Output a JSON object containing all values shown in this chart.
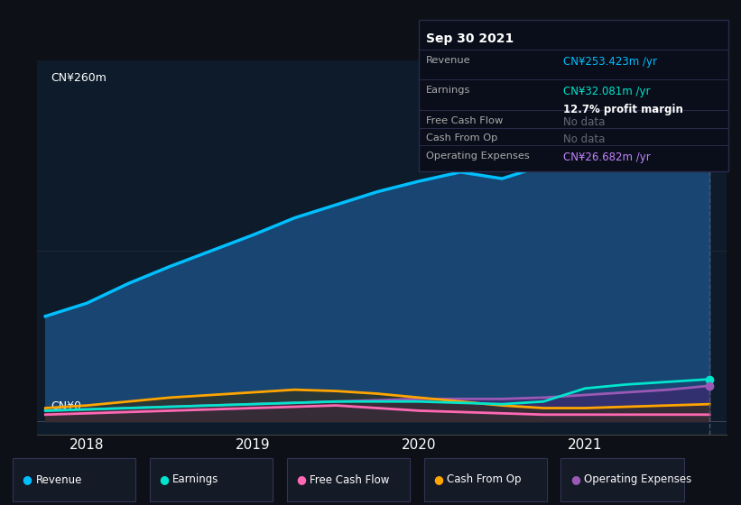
{
  "bg_color": "#0d1117",
  "plot_bg_color": "#0d1b2a",
  "ylabel_top": "CN¥260m",
  "ylabel_bottom": "CN¥0",
  "x_ticks": [
    2018,
    2019,
    2020,
    2021
  ],
  "x_range": [
    2017.7,
    2021.85
  ],
  "y_range": [
    -10,
    275
  ],
  "revenue_color": "#00bfff",
  "earnings_color": "#00e5cc",
  "fcf_color": "#ff69b4",
  "cashop_color": "#ffa500",
  "opex_color": "#9b59b6",
  "revenue_fill": "#1a4a7a",
  "tooltip": {
    "date": "Sep 30 2021",
    "revenue_label": "Revenue",
    "revenue_value": "CN¥253.423m /yr",
    "revenue_color": "#00bfff",
    "earnings_label": "Earnings",
    "earnings_value": "CN¥32.081m /yr",
    "earnings_color": "#00e5cc",
    "margin_text": "12.7% profit margin",
    "fcf_label": "Free Cash Flow",
    "fcf_value": "No data",
    "cashop_label": "Cash From Op",
    "cashop_value": "No data",
    "opex_label": "Operating Expenses",
    "opex_value": "CN¥26.682m /yr",
    "opex_color": "#c084fc"
  },
  "legend": [
    {
      "label": "Revenue",
      "color": "#00bfff"
    },
    {
      "label": "Earnings",
      "color": "#00e5cc"
    },
    {
      "label": "Free Cash Flow",
      "color": "#ff69b4"
    },
    {
      "label": "Cash From Op",
      "color": "#ffa500"
    },
    {
      "label": "Operating Expenses",
      "color": "#9b59b6"
    }
  ],
  "x_data": [
    2017.75,
    2018.0,
    2018.25,
    2018.5,
    2018.75,
    2019.0,
    2019.25,
    2019.5,
    2019.75,
    2020.0,
    2020.25,
    2020.5,
    2020.75,
    2021.0,
    2021.25,
    2021.5,
    2021.75
  ],
  "revenue": [
    80,
    90,
    105,
    118,
    130,
    142,
    155,
    165,
    175,
    183,
    190,
    185,
    195,
    210,
    230,
    245,
    253
  ],
  "earnings": [
    8,
    9,
    10,
    11,
    12,
    13,
    14,
    15,
    15,
    15,
    14,
    13,
    15,
    25,
    28,
    30,
    32
  ],
  "free_cash_flow": [
    5,
    6,
    7,
    8,
    9,
    10,
    11,
    12,
    10,
    8,
    7,
    6,
    5,
    5,
    5,
    5,
    5
  ],
  "cash_from_op": [
    10,
    12,
    15,
    18,
    20,
    22,
    24,
    23,
    21,
    18,
    15,
    12,
    10,
    10,
    11,
    12,
    13
  ],
  "opex": [
    8,
    9,
    10,
    11,
    12,
    13,
    14,
    15,
    16,
    17,
    17,
    17,
    18,
    20,
    22,
    24,
    27
  ]
}
